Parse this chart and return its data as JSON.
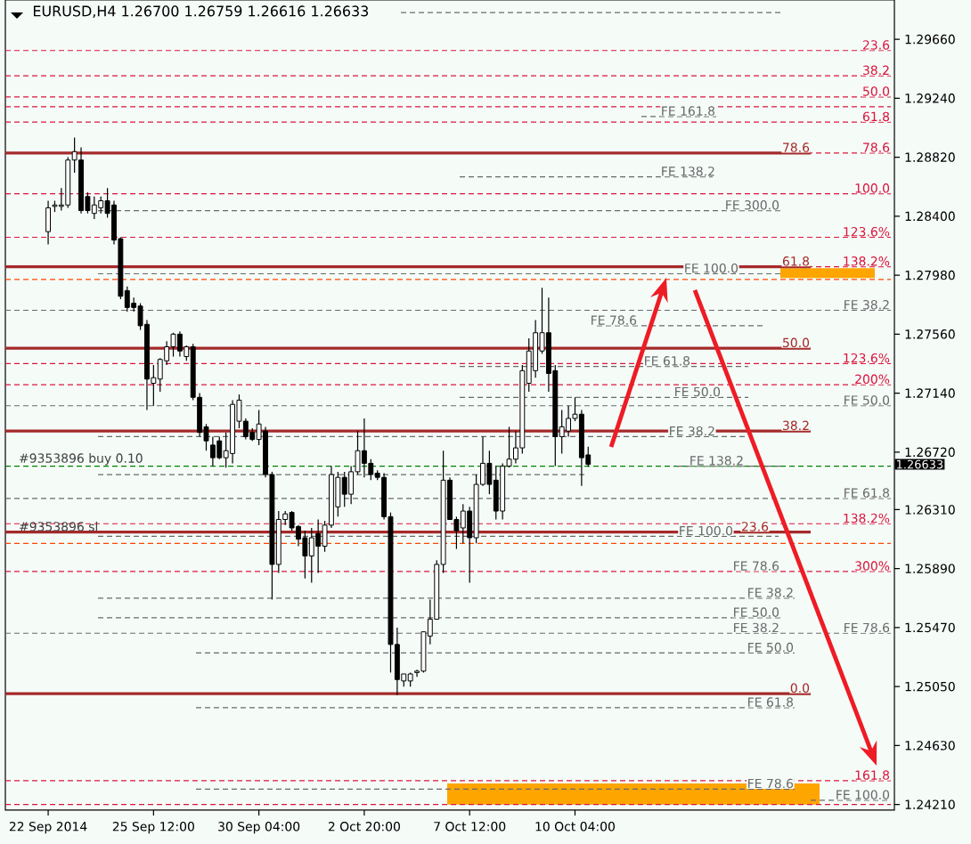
{
  "chart_data": {
    "type": "candlestick",
    "title": "EURUSD,H4  1.26700 1.26759 1.26616 1.26633",
    "categories": [
      null,
      null,
      null,
      null,
      null,
      null,
      "22 Sep 2014",
      null,
      null,
      null,
      null,
      null,
      null,
      null,
      null,
      null,
      null,
      null,
      null,
      null,
      null,
      null,
      "25 Sep 12:00",
      null,
      null,
      null,
      null,
      null,
      null,
      null,
      null,
      null,
      null,
      null,
      null,
      null,
      null,
      null,
      "30 Sep 04:00",
      null,
      null,
      null,
      null,
      null,
      null,
      null,
      null,
      null,
      null,
      null,
      null,
      null,
      null,
      null,
      "2 Oct 20:00",
      null,
      null,
      null,
      null,
      null,
      null,
      null,
      null,
      null,
      null,
      null,
      null,
      null,
      null,
      null,
      "7 Oct 12:00",
      null,
      null,
      null,
      null,
      null,
      null,
      null,
      null,
      null,
      null,
      null,
      null,
      null,
      null,
      null,
      "10 Oct 04:00",
      null,
      null,
      null,
      null,
      null,
      null,
      null,
      null,
      null,
      null,
      null,
      null,
      null,
      null,
      null,
      null,
      null,
      null,
      null,
      null,
      null,
      null,
      null,
      null,
      null,
      null,
      null,
      null,
      null,
      null,
      null,
      null,
      null,
      null,
      null,
      null,
      null,
      null,
      null,
      null,
      null,
      null,
      null,
      null,
      null,
      null,
      null,
      null
    ],
    "ohlc": [
      null,
      null,
      null,
      null,
      null,
      null,
      [
        1.2829,
        1.2851,
        1.282,
        1.2846
      ],
      [
        1.2847,
        1.2851,
        1.2843,
        1.2848
      ],
      [
        1.2847,
        1.286,
        1.2844,
        1.2848
      ],
      [
        1.2848,
        1.2882,
        1.2846,
        1.288
      ],
      [
        1.288,
        1.2896,
        1.2871,
        1.2886
      ],
      [
        1.288,
        1.2889,
        1.2842,
        1.2844
      ],
      [
        1.2854,
        1.2857,
        1.2842,
        1.2844
      ],
      [
        1.2842,
        1.2854,
        1.2838,
        1.2848
      ],
      [
        1.2846,
        1.2854,
        1.2842,
        1.2851
      ],
      [
        1.2851,
        1.286,
        1.2839,
        1.2842
      ],
      [
        1.2848,
        1.2851,
        1.282,
        1.2823
      ],
      [
        1.2824,
        1.2825,
        1.2781,
        1.2783
      ],
      [
        1.2787,
        1.279,
        1.2772,
        1.2775
      ],
      [
        1.2778,
        1.2782,
        1.2772,
        1.2775
      ],
      [
        1.2776,
        1.2778,
        1.2759,
        1.2762
      ],
      [
        1.2763,
        1.2766,
        1.2702,
        1.2724
      ],
      [
        1.2721,
        1.2734,
        1.2705,
        1.2725
      ],
      [
        1.2724,
        1.2739,
        1.2715,
        1.2738
      ],
      [
        1.2737,
        1.2751,
        1.2734,
        1.2747
      ],
      [
        1.2747,
        1.2757,
        1.274,
        1.2756
      ],
      [
        1.2756,
        1.2758,
        1.274,
        1.2744
      ],
      [
        1.274,
        1.2748,
        1.2737,
        1.2747
      ],
      [
        1.2747,
        1.2749,
        1.2709,
        1.2711
      ],
      [
        1.2711,
        1.2714,
        1.2683,
        1.2686
      ],
      [
        1.269,
        1.2692,
        1.2673,
        1.268
      ],
      [
        1.2677,
        1.2683,
        1.2662,
        1.2668
      ],
      [
        1.268,
        1.2683,
        1.2667,
        1.2668
      ],
      [
        1.2668,
        1.2686,
        1.2661,
        1.2673
      ],
      [
        1.2671,
        1.2709,
        1.2664,
        1.2706
      ],
      [
        1.2694,
        1.2713,
        1.2689,
        1.2709
      ],
      [
        1.2694,
        1.2696,
        1.2681,
        1.2683
      ],
      [
        1.2686,
        1.2689,
        1.268,
        1.2681
      ],
      [
        1.2681,
        1.2702,
        1.2677,
        1.2692
      ],
      [
        1.2687,
        1.269,
        1.2654,
        1.2656
      ],
      [
        1.2656,
        1.2658,
        1.2567,
        1.2592
      ],
      [
        1.2592,
        1.263,
        1.2586,
        1.2624
      ],
      [
        1.2624,
        1.263,
        1.262,
        1.2628
      ],
      [
        1.2629,
        1.263,
        1.2616,
        1.2618
      ],
      [
        1.2619,
        1.262,
        1.2605,
        1.261
      ],
      [
        1.2611,
        1.2616,
        1.2582,
        1.2598
      ],
      [
        1.2598,
        1.2618,
        1.2579,
        1.2611
      ],
      [
        1.2614,
        1.2624,
        1.2586,
        1.2605
      ],
      [
        1.2605,
        1.2623,
        1.2601,
        1.262
      ],
      [
        1.262,
        1.2662,
        1.2618,
        1.2656
      ],
      [
        1.2633,
        1.2658,
        1.2626,
        1.2654
      ],
      [
        1.2654,
        1.2658,
        1.2633,
        1.2642
      ],
      [
        1.2642,
        1.2662,
        1.2635,
        1.2658
      ],
      [
        1.2658,
        1.2687,
        1.2656,
        1.2673
      ],
      [
        1.2673,
        1.2696,
        1.2654,
        1.2664
      ],
      [
        1.2664,
        1.2667,
        1.2652,
        1.2656
      ],
      [
        1.2657,
        1.2659,
        1.2652,
        1.2654
      ],
      [
        1.2654,
        1.2657,
        1.2624,
        1.2626
      ],
      [
        1.2626,
        1.2629,
        1.2515,
        1.2535
      ],
      [
        1.2535,
        1.2547,
        1.2499,
        1.251
      ],
      [
        1.2509,
        1.2514,
        1.2505,
        1.2514
      ],
      [
        1.2509,
        1.2515,
        1.2505,
        1.2514
      ],
      [
        1.2515,
        1.2517,
        1.2512,
        1.2516
      ],
      [
        1.2516,
        1.2544,
        1.2515,
        1.2544
      ],
      [
        1.2541,
        1.2567,
        1.2535,
        1.2553
      ],
      [
        1.2553,
        1.2595,
        1.2553,
        1.2592
      ],
      [
        1.2592,
        1.2673,
        1.2586,
        1.2652
      ],
      [
        1.2652,
        1.2654,
        1.2624,
        1.2624
      ],
      [
        1.2624,
        1.2626,
        1.2603,
        1.2616
      ],
      [
        1.2618,
        1.2635,
        1.2607,
        1.263
      ],
      [
        1.263,
        1.2633,
        1.2579,
        1.2611
      ],
      [
        1.2611,
        1.2656,
        1.2607,
        1.2649
      ],
      [
        1.2649,
        1.2683,
        1.2648,
        1.2664
      ],
      [
        1.2664,
        1.2673,
        1.2642,
        1.2649
      ],
      [
        1.2652,
        1.2662,
        1.2624,
        1.263
      ],
      [
        1.263,
        1.2664,
        1.2624,
        1.2662
      ],
      [
        1.2662,
        1.269,
        1.2661,
        1.2667
      ],
      [
        1.2667,
        1.2687,
        1.2664,
        1.2675
      ],
      [
        1.2675,
        1.2734,
        1.2671,
        1.273
      ],
      [
        1.2721,
        1.2753,
        1.2715,
        1.2744
      ],
      [
        1.273,
        1.2766,
        1.2725,
        1.2757
      ],
      [
        1.2744,
        1.2789,
        1.2742,
        1.2757
      ],
      [
        1.2757,
        1.2782,
        1.2715,
        1.2728
      ],
      [
        1.273,
        1.2734,
        1.2662,
        1.2683
      ],
      [
        1.2683,
        1.2702,
        1.2671,
        1.269
      ],
      [
        1.2687,
        1.2705,
        1.2683,
        1.2696
      ],
      [
        1.2696,
        1.2711,
        1.2694,
        1.2699
      ],
      [
        1.2699,
        1.2702,
        1.2648,
        1.2668
      ],
      [
        1.267,
        1.26759,
        1.26616,
        1.26633
      ],
      null,
      null,
      null,
      null,
      null,
      null,
      null,
      null,
      null,
      null,
      null,
      null,
      null,
      null,
      null,
      null,
      null,
      null,
      null,
      null,
      null,
      null,
      null,
      null,
      null,
      null,
      null,
      null,
      null,
      null,
      null,
      null,
      null,
      null,
      null,
      null,
      null,
      null,
      null,
      null,
      null,
      null,
      null,
      null,
      null,
      null
    ],
    "ylim": [
      1.2417,
      1.2994
    ],
    "yticks": [
      {
        "value": 1.2966,
        "label": "1.29660"
      },
      {
        "value": 1.2924,
        "label": "1.29240"
      },
      {
        "value": 1.2882,
        "label": "1.28820"
      },
      {
        "value": 1.284,
        "label": "1.28400"
      },
      {
        "value": 1.2798,
        "label": "1.27980"
      },
      {
        "value": 1.2756,
        "label": "1.27560"
      },
      {
        "value": 1.2714,
        "label": "1.27140"
      },
      {
        "value": 1.2672,
        "label": "1.26720"
      },
      {
        "value": 1.2631,
        "label": "1.26310"
      },
      {
        "value": 1.2589,
        "label": "1.25890"
      },
      {
        "value": 1.2547,
        "label": "1.25470"
      },
      {
        "value": 1.2505,
        "label": "1.25050"
      },
      {
        "value": 1.2463,
        "label": "1.24630"
      },
      {
        "value": 1.2421,
        "label": "1.24210"
      }
    ],
    "ref_lines": [
      {
        "axis": "y",
        "value": 1.2985,
        "color": "#696969",
        "line_style": "dashed"
      },
      {
        "axis": "y",
        "value": 1.2958,
        "color": "#dc143c",
        "line_style": "dashed"
      },
      {
        "axis": "y",
        "value": 1.294,
        "color": "#dc143c",
        "line_style": "dashed"
      },
      {
        "axis": "y",
        "value": 1.2925,
        "color": "#dc143c",
        "line_style": "dashed"
      },
      {
        "axis": "y",
        "value": 1.2918,
        "color": "#dc143c",
        "line_style": "dashed"
      },
      {
        "axis": "y",
        "value": 1.2911,
        "color": "#696969",
        "line_style": "dashed"
      },
      {
        "axis": "y",
        "value": 1.2907,
        "color": "#dc143c",
        "line_style": "dashed"
      },
      {
        "axis": "y",
        "value": 1.2885,
        "color": "#dc143c",
        "line_style": "dashed"
      },
      {
        "axis": "y",
        "value": 1.2885,
        "color": "#a52a2a",
        "line_style": "solid"
      },
      {
        "axis": "y",
        "value": 1.2868,
        "color": "#696969",
        "line_style": "dashed"
      },
      {
        "axis": "y",
        "value": 1.2856,
        "color": "#dc143c",
        "line_style": "dashed"
      },
      {
        "axis": "y",
        "value": 1.2844,
        "color": "#696969",
        "line_style": "dashed"
      },
      {
        "axis": "y",
        "value": 1.2825,
        "color": "#dc143c",
        "line_style": "dashed"
      },
      {
        "axis": "y",
        "value": 1.2804,
        "color": "#dc143c",
        "line_style": "dashed"
      },
      {
        "axis": "y",
        "value": 1.2804,
        "color": "#a52a2a",
        "line_style": "solid"
      },
      {
        "axis": "y",
        "value": 1.2799,
        "color": "#696969",
        "line_style": "dashed"
      },
      {
        "axis": "y",
        "value": 1.2795,
        "color": "#ff4500",
        "line_style": "dashed"
      },
      {
        "axis": "y",
        "value": 1.2773,
        "color": "#696969",
        "line_style": "dashed"
      },
      {
        "axis": "y",
        "value": 1.2762,
        "color": "#696969",
        "line_style": "dashed"
      },
      {
        "axis": "y",
        "value": 1.2746,
        "color": "#a52a2a",
        "line_style": "solid"
      },
      {
        "axis": "y",
        "value": 1.2735,
        "color": "#dc143c",
        "line_style": "dashed"
      },
      {
        "axis": "y",
        "value": 1.2733,
        "color": "#696969",
        "line_style": "dashed"
      },
      {
        "axis": "y",
        "value": 1.272,
        "color": "#dc143c",
        "line_style": "dashed"
      },
      {
        "axis": "y",
        "value": 1.2711,
        "color": "#696969",
        "line_style": "dashed"
      },
      {
        "axis": "y",
        "value": 1.2705,
        "color": "#696969",
        "line_style": "dashed"
      },
      {
        "axis": "y",
        "value": 1.2687,
        "color": "#a52a2a",
        "line_style": "solid"
      },
      {
        "axis": "y",
        "value": 1.2683,
        "color": "#696969",
        "line_style": "dashed"
      },
      {
        "axis": "y",
        "value": 1.2662,
        "color": "#008000",
        "line_style": "dashed"
      },
      {
        "axis": "y",
        "value": 1.2662,
        "color": "#696969",
        "line_style": "dashed"
      },
      {
        "axis": "y",
        "value": 1.2656,
        "color": "#696969",
        "line_style": "dashed"
      },
      {
        "axis": "y",
        "value": 1.2639,
        "color": "#696969",
        "line_style": "dashed"
      },
      {
        "axis": "y",
        "value": 1.2621,
        "color": "#dc143c",
        "line_style": "dashed"
      },
      {
        "axis": "y",
        "value": 1.2615,
        "color": "#a52a2a",
        "line_style": "solid"
      },
      {
        "axis": "y",
        "value": 1.2612,
        "color": "#696969",
        "line_style": "dashed"
      },
      {
        "axis": "y",
        "value": 1.2607,
        "color": "#ff4500",
        "line_style": "dashed"
      },
      {
        "axis": "y",
        "value": 1.2587,
        "color": "#dc143c",
        "line_style": "dashed"
      },
      {
        "axis": "y",
        "value": 1.2568,
        "color": "#696969",
        "line_style": "dashed"
      },
      {
        "axis": "y",
        "value": 1.2554,
        "color": "#696969",
        "line_style": "dashed"
      },
      {
        "axis": "y",
        "value": 1.2543,
        "color": "#696969",
        "line_style": "dashed"
      },
      {
        "axis": "y",
        "value": 1.2529,
        "color": "#696969",
        "line_style": "dashed"
      },
      {
        "axis": "y",
        "value": 1.25,
        "color": "#a52a2a",
        "line_style": "solid"
      },
      {
        "axis": "y",
        "value": 1.249,
        "color": "#696969",
        "line_style": "dashed"
      },
      {
        "axis": "y",
        "value": 1.2438,
        "color": "#dc143c",
        "line_style": "dashed"
      },
      {
        "axis": "y",
        "value": 1.2432,
        "color": "#696969",
        "line_style": "dashed"
      },
      {
        "axis": "y",
        "value": 1.2424,
        "color": "#696969",
        "line_style": "dashed"
      },
      {
        "axis": "y",
        "value": 1.2421,
        "color": "#dc143c",
        "line_style": "dashed"
      }
    ],
    "bands": [
      {
        "axis": "y",
        "from": 1.2796,
        "to": 1.2803,
        "color": "#ffa500"
      },
      {
        "axis": "y",
        "from": 1.2421,
        "to": 1.2436,
        "color": "#ffa500"
      }
    ],
    "annotations": [
      {
        "text": "23.6",
        "y": 1.2958
      },
      {
        "text": "38.2",
        "y": 1.294
      },
      {
        "text": "50.0",
        "y": 1.2925
      },
      {
        "text": "FE 161.8",
        "y": 1.2911
      },
      {
        "text": "61.8",
        "y": 1.2907
      },
      {
        "text": "78.6",
        "y": 1.2885
      },
      {
        "text": "78.6",
        "y": 1.2885
      },
      {
        "text": "FE 138.2",
        "y": 1.2868
      },
      {
        "text": "100.0",
        "y": 1.2856
      },
      {
        "text": "FE 300.0",
        "y": 1.2844
      },
      {
        "text": "123.6%",
        "y": 1.2825
      },
      {
        "text": "138.2%",
        "y": 1.2804
      },
      {
        "text": "61.8",
        "y": 1.2804
      },
      {
        "text": "FE 100.0",
        "y": 1.2799
      },
      {
        "text": "FE 38.2",
        "y": 1.2773
      },
      {
        "text": "FE 78.6",
        "y": 1.2762
      },
      {
        "text": "50.0",
        "y": 1.2746
      },
      {
        "text": "123.6%",
        "y": 1.2735
      },
      {
        "text": "FE 61.8",
        "y": 1.2733
      },
      {
        "text": "200%",
        "y": 1.272
      },
      {
        "text": "FE 50.0",
        "y": 1.2711
      },
      {
        "text": "FE 50.0",
        "y": 1.2705
      },
      {
        "text": "38.2",
        "y": 1.2687
      },
      {
        "text": "FE 38.2",
        "y": 1.2683
      },
      {
        "text": "FE 138.2",
        "y": 1.2662
      },
      {
        "text": "FE 61.8",
        "y": 1.2639
      },
      {
        "text": "138.2%",
        "y": 1.2621
      },
      {
        "text": "23.6",
        "y": 1.2615
      },
      {
        "text": "FE 100.0",
        "y": 1.2612
      },
      {
        "text": "300%",
        "y": 1.2587
      },
      {
        "text": "FE 78.6",
        "y": 1.2587
      },
      {
        "text": "FE 38.2",
        "y": 1.2568
      },
      {
        "text": "FE 50.0",
        "y": 1.2554
      },
      {
        "text": "FE 38.2",
        "y": 1.2543
      },
      {
        "text": "FE 78.6",
        "y": 1.2543
      },
      {
        "text": "FE 50.0",
        "y": 1.2529
      },
      {
        "text": "0.0",
        "y": 1.25
      },
      {
        "text": "FE 61.8",
        "y": 1.249
      },
      {
        "text": "161.8",
        "y": 1.2438
      },
      {
        "text": "FE 78.6",
        "y": 1.2432
      },
      {
        "text": "FE 100.0",
        "y": 1.2424
      },
      {
        "text": "#9353896 buy 0.10",
        "y": 1.2662
      },
      {
        "text": "#9353896 sl",
        "y": 1.2615
      },
      "1.26633"
    ]
  }
}
